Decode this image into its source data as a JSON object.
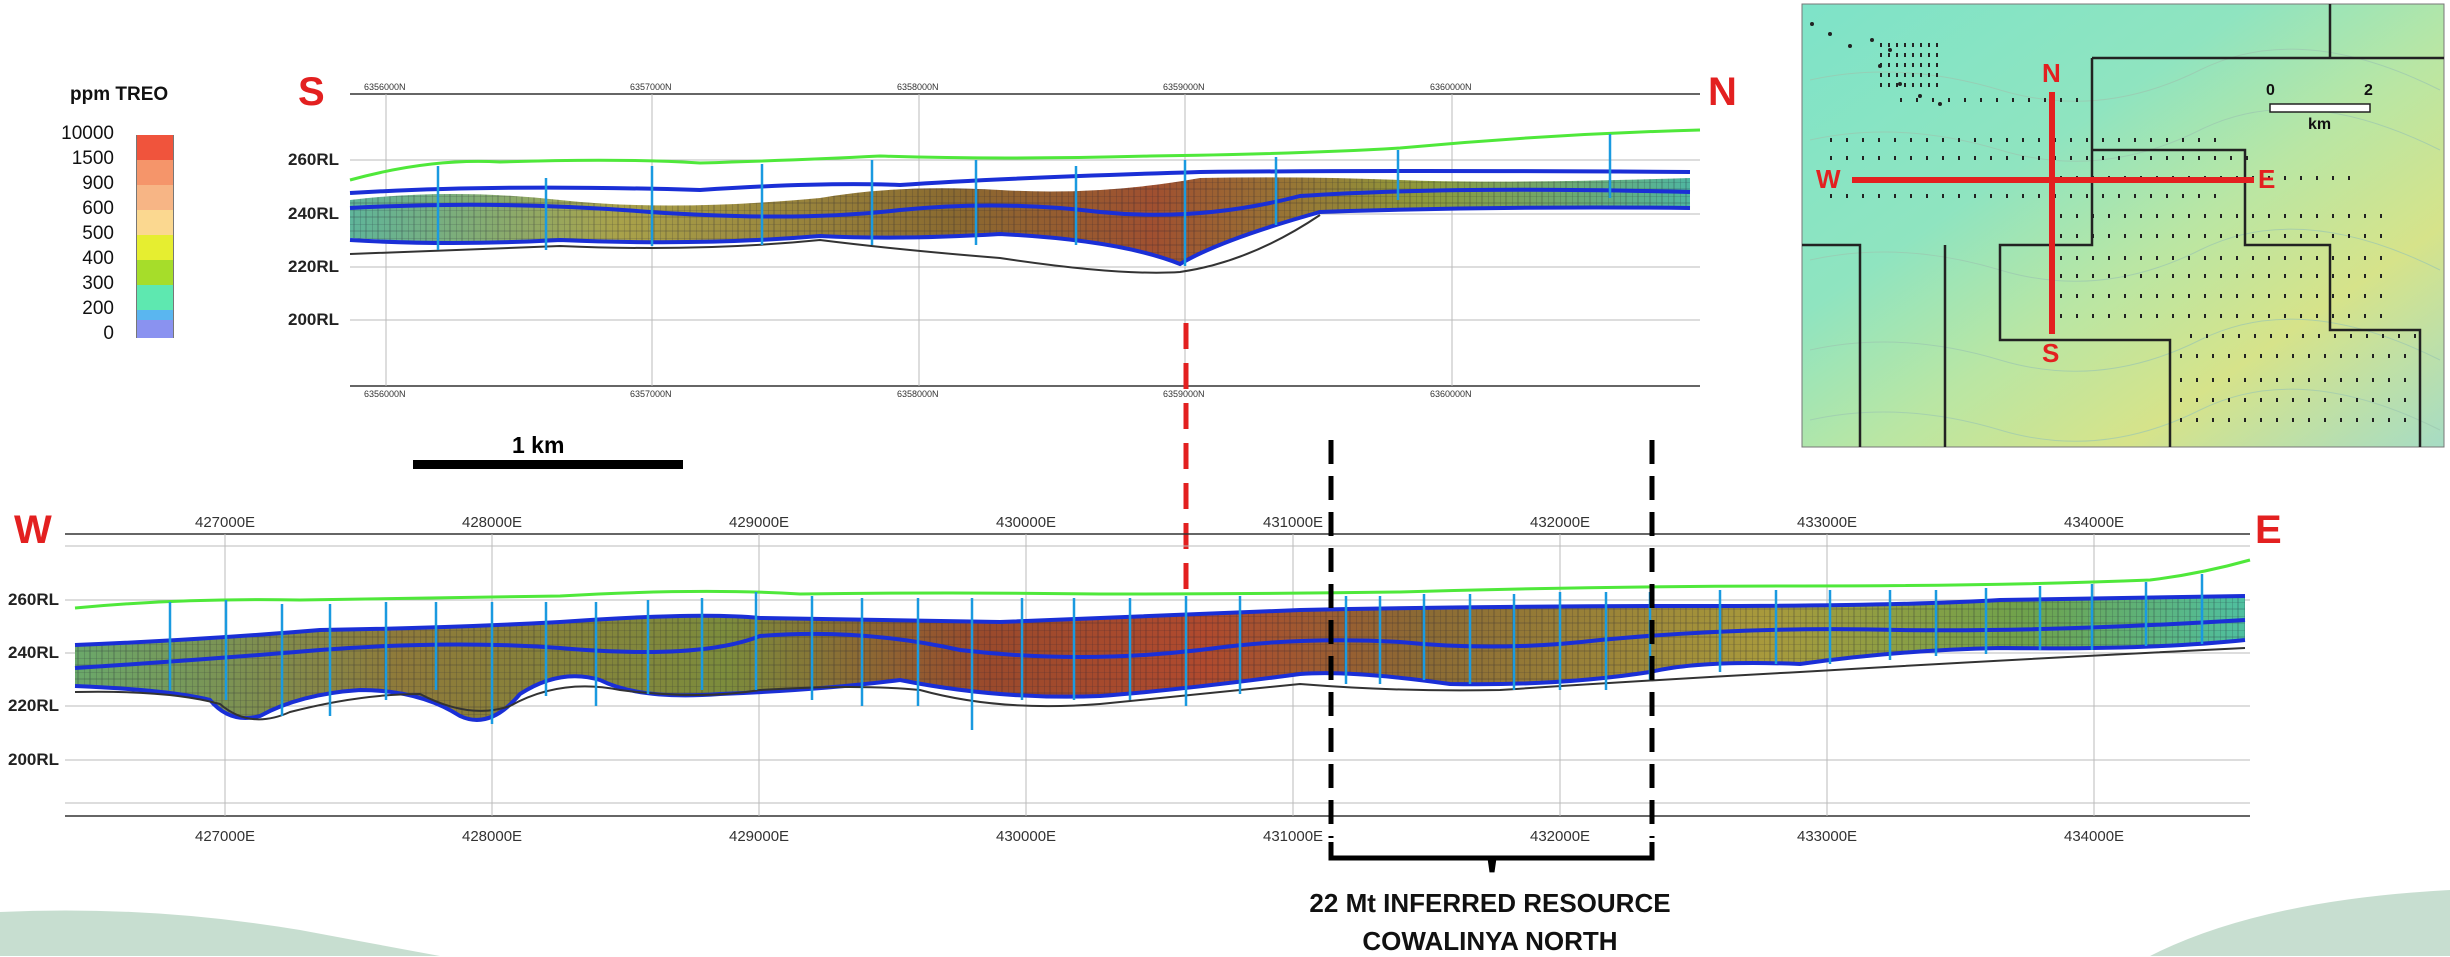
{
  "legend": {
    "title": "ppm TREO",
    "labels": [
      "10000",
      "1500",
      "900",
      "600",
      "500",
      "400",
      "300",
      "200",
      "0"
    ],
    "colors": [
      "#f0543c",
      "#f5956a",
      "#f7b585",
      "#fbd890",
      "#e6ee30",
      "#a6dd2a",
      "#5ee8b0",
      "#5ab6f0",
      "#8a92f0"
    ]
  },
  "ns_section": {
    "left_dir": "S",
    "right_dir": "N",
    "rl_labels": [
      "260RL",
      "240RL",
      "220RL",
      "200RL"
    ],
    "northing_labels": [
      "6356000N",
      "6357000N",
      "6358000N",
      "6359000N",
      "6360000N"
    ]
  },
  "scale_bar": {
    "label": "1 km"
  },
  "we_section": {
    "left_dir": "W",
    "right_dir": "E",
    "rl_labels": [
      "260RL",
      "240RL",
      "220RL",
      "200RL"
    ],
    "easting_labels": [
      "427000E",
      "428000E",
      "429000E",
      "430000E",
      "431000E",
      "432000E",
      "433000E",
      "434000E"
    ]
  },
  "resource": {
    "line1": "22 Mt INFERRED RESOURCE",
    "line2": "COWALINYA NORTH"
  },
  "inset_map": {
    "n": "N",
    "s": "S",
    "w": "W",
    "e": "E",
    "scale_0": "0",
    "scale_2": "2",
    "scale_unit": "km"
  },
  "colors": {
    "accent_red": "#e32020",
    "topo_green": "#4fe83a",
    "drill_blue": "#1a2fd6",
    "footer_green": "#1f7a45"
  }
}
